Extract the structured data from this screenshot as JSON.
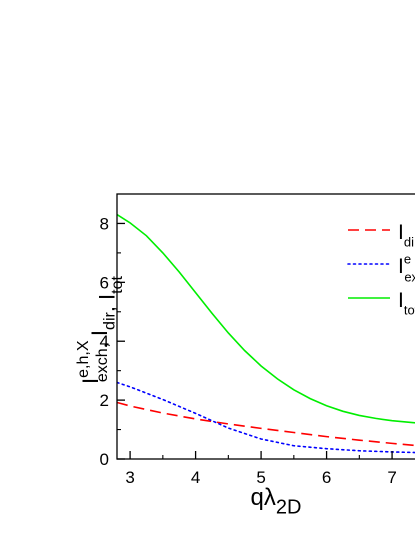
{
  "chart_data": {
    "type": "line",
    "xlim": [
      2.8,
      7.35
    ],
    "ylim": [
      0,
      9
    ],
    "x_ticks": [
      3,
      4,
      5,
      6,
      7
    ],
    "y_ticks": [
      0,
      2,
      4,
      6,
      8
    ],
    "xlabel": {
      "main": "qλ",
      "sub": "2D"
    },
    "ylabel": {
      "parts": [
        {
          "main": "I",
          "sup": "e,h,X",
          "sub": "exch"
        },
        {
          "sep": ", "
        },
        {
          "main": "I",
          "sub": "dir"
        },
        {
          "sep": ", "
        },
        {
          "main": "I",
          "sub": "tot"
        }
      ]
    },
    "legend_position": "right (clipped at image edge)",
    "grid": false,
    "series": [
      {
        "legend": {
          "main": "I",
          "sub": "di"
        },
        "color": "#ff0000",
        "style": "dashed",
        "x": [
          2.8,
          3.0,
          3.5,
          4.0,
          4.5,
          5.0,
          5.5,
          6.0,
          6.5,
          7.0,
          7.35
        ],
        "y": [
          1.92,
          1.8,
          1.56,
          1.36,
          1.19,
          1.04,
          0.9,
          0.76,
          0.64,
          0.53,
          0.46
        ]
      },
      {
        "legend": {
          "main": "I",
          "sup": "e",
          "sub": "ex"
        },
        "color": "#0000ff",
        "style": "dotted",
        "x": [
          2.8,
          3.0,
          3.5,
          4.0,
          4.5,
          5.0,
          5.5,
          6.0,
          6.5,
          7.0,
          7.35
        ],
        "y": [
          2.6,
          2.45,
          2.02,
          1.55,
          1.05,
          0.68,
          0.45,
          0.35,
          0.28,
          0.24,
          0.22
        ]
      },
      {
        "legend": {
          "main": "I",
          "sub": "tot"
        },
        "color": "#00ee00",
        "style": "solid",
        "x": [
          2.8,
          3.0,
          3.25,
          3.5,
          3.75,
          4.0,
          4.25,
          4.5,
          4.75,
          5.0,
          5.25,
          5.5,
          5.75,
          6.0,
          6.25,
          6.5,
          6.75,
          7.0,
          7.35
        ],
        "y": [
          8.3,
          8.02,
          7.58,
          7.0,
          6.35,
          5.65,
          4.95,
          4.28,
          3.68,
          3.16,
          2.72,
          2.35,
          2.05,
          1.81,
          1.62,
          1.48,
          1.38,
          1.3,
          1.23
        ]
      }
    ]
  }
}
